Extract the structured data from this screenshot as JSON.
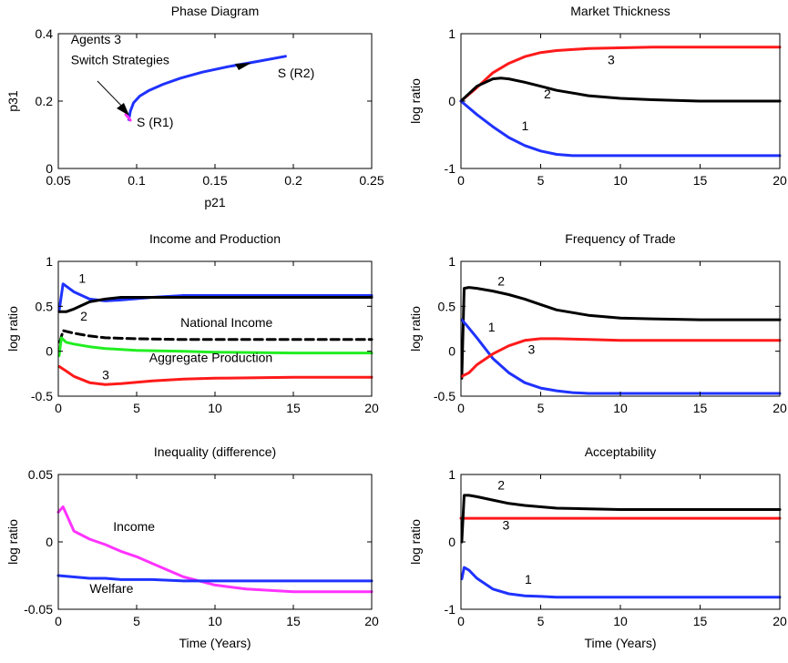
{
  "chart_data": [
    {
      "type": "line",
      "title": "Phase Diagram",
      "xlabel": "p21",
      "ylabel": "p31",
      "xlim": [
        0.05,
        0.25
      ],
      "ylim": [
        0,
        0.4
      ],
      "xticks": [
        0.05,
        0.1,
        0.15,
        0.2,
        0.25
      ],
      "xtick_labels": [
        "0.05",
        "0.1",
        "0.15",
        "0.2",
        "0.25"
      ],
      "yticks": [
        0,
        0.2,
        0.4
      ],
      "ytick_labels": [
        "0",
        "0.2",
        "0.4"
      ],
      "series": [
        {
          "color": "#1f32ff",
          "dashed": false,
          "x": [
            0.095,
            0.096,
            0.098,
            0.102,
            0.108,
            0.117,
            0.128,
            0.142,
            0.158,
            0.175,
            0.195
          ],
          "y": [
            0.145,
            0.17,
            0.195,
            0.215,
            0.232,
            0.25,
            0.268,
            0.286,
            0.302,
            0.316,
            0.333
          ]
        },
        {
          "color": "#ff33ff",
          "dashed": false,
          "x": [
            0.093,
            0.094,
            0.095,
            0.096
          ],
          "y": [
            0.16,
            0.155,
            0.15,
            0.143
          ]
        }
      ],
      "annotations": [
        {
          "text": "Agents 3",
          "x": 0.058,
          "y": 0.37
        },
        {
          "text": "Switch Strategies",
          "x": 0.058,
          "y": 0.31
        },
        {
          "text": "S (R2)",
          "x": 0.19,
          "y": 0.27
        },
        {
          "text": "S (R1)",
          "x": 0.1,
          "y": 0.125
        }
      ]
    },
    {
      "type": "line",
      "title": "Market Thickness",
      "xlabel": "",
      "ylabel": "log ratio",
      "xlim": [
        0,
        20
      ],
      "ylim": [
        -1,
        1
      ],
      "xticks": [
        0,
        5,
        10,
        15,
        20
      ],
      "xtick_labels": [
        "0",
        "5",
        "10",
        "15",
        "20"
      ],
      "yticks": [
        -1,
        0,
        1
      ],
      "ytick_labels": [
        "-1",
        "0",
        "1"
      ],
      "series": [
        {
          "color": "#ff1a1a",
          "dashed": false,
          "x": [
            0,
            1,
            2,
            3,
            4,
            5,
            6,
            8,
            10,
            12,
            15,
            20
          ],
          "y": [
            0,
            0.2,
            0.42,
            0.56,
            0.66,
            0.72,
            0.75,
            0.78,
            0.79,
            0.8,
            0.8,
            0.8
          ]
        },
        {
          "color": "#000000",
          "dashed": false,
          "x": [
            0,
            1,
            2,
            2.5,
            3,
            4,
            5,
            6,
            8,
            10,
            12,
            15,
            20
          ],
          "y": [
            0,
            0.22,
            0.33,
            0.34,
            0.33,
            0.28,
            0.22,
            0.16,
            0.08,
            0.04,
            0.02,
            0.0,
            0.0
          ]
        },
        {
          "color": "#1f32ff",
          "dashed": false,
          "x": [
            0,
            1,
            2,
            3,
            4,
            5,
            6,
            7,
            8,
            10,
            15,
            20
          ],
          "y": [
            0,
            -0.2,
            -0.38,
            -0.54,
            -0.66,
            -0.74,
            -0.79,
            -0.81,
            -0.81,
            -0.81,
            -0.81,
            -0.81
          ]
        }
      ],
      "annotations": [
        {
          "text": "3",
          "x": 9.2,
          "y": 0.55
        },
        {
          "text": "2",
          "x": 5.2,
          "y": 0.04
        },
        {
          "text": "1",
          "x": 3.8,
          "y": -0.43
        }
      ]
    },
    {
      "type": "line",
      "title": "Income and Production",
      "xlabel": "",
      "ylabel": "log ratio",
      "xlim": [
        0,
        20
      ],
      "ylim": [
        -0.5,
        1
      ],
      "xticks": [
        0,
        5,
        10,
        15,
        20
      ],
      "xtick_labels": [
        "0",
        "5",
        "10",
        "15",
        "20"
      ],
      "yticks": [
        -0.5,
        0,
        0.5,
        1
      ],
      "ytick_labels": [
        "-0.5",
        "0",
        "0.5",
        "1"
      ],
      "series": [
        {
          "color": "#1f32ff",
          "dashed": false,
          "x": [
            0.05,
            0.3,
            1,
            2,
            3,
            4,
            6,
            8,
            10,
            15,
            20
          ],
          "y": [
            0.45,
            0.75,
            0.66,
            0.58,
            0.56,
            0.57,
            0.6,
            0.62,
            0.62,
            0.62,
            0.62
          ]
        },
        {
          "color": "#000000",
          "dashed": false,
          "x": [
            0.05,
            0.5,
            1,
            2,
            3,
            4,
            6,
            8,
            10,
            15,
            20
          ],
          "y": [
            0.44,
            0.44,
            0.47,
            0.55,
            0.58,
            0.6,
            0.6,
            0.6,
            0.6,
            0.6,
            0.6
          ]
        },
        {
          "color": "#000000",
          "dashed": true,
          "x": [
            0.1,
            0.3,
            1,
            2,
            3,
            5,
            8,
            10,
            15,
            20
          ],
          "y": [
            0.1,
            0.23,
            0.2,
            0.17,
            0.15,
            0.14,
            0.13,
            0.13,
            0.13,
            0.13
          ]
        },
        {
          "color": "#22ee22",
          "dashed": false,
          "x": [
            0.05,
            0.2,
            0.5,
            1,
            2,
            3,
            5,
            8,
            10,
            15,
            20
          ],
          "y": [
            -0.05,
            0.15,
            0.1,
            0.08,
            0.05,
            0.03,
            0.01,
            0.0,
            -0.01,
            -0.02,
            -0.02
          ]
        },
        {
          "color": "#ff1a1a",
          "dashed": false,
          "x": [
            0.05,
            0.5,
            1,
            2,
            3,
            4,
            6,
            8,
            10,
            15,
            20
          ],
          "y": [
            -0.17,
            -0.22,
            -0.28,
            -0.35,
            -0.37,
            -0.36,
            -0.33,
            -0.31,
            -0.3,
            -0.29,
            -0.29
          ]
        }
      ],
      "annotations": [
        {
          "text": "1",
          "x": 1.3,
          "y": 0.76
        },
        {
          "text": "2",
          "x": 1.4,
          "y": 0.34
        },
        {
          "text": "National Income",
          "x": 7.8,
          "y": 0.27
        },
        {
          "text": "Aggregate Production",
          "x": 5.8,
          "y": -0.12
        },
        {
          "text": "3",
          "x": 2.8,
          "y": -0.31
        }
      ]
    },
    {
      "type": "line",
      "title": "Frequency of Trade",
      "xlabel": "",
      "ylabel": "log ratio",
      "xlim": [
        0,
        20
      ],
      "ylim": [
        -0.5,
        1
      ],
      "xticks": [
        0,
        5,
        10,
        15,
        20
      ],
      "xtick_labels": [
        "0",
        "5",
        "10",
        "15",
        "20"
      ],
      "yticks": [
        -0.5,
        0,
        0.5,
        1
      ],
      "ytick_labels": [
        "-0.5",
        "0",
        "0.5",
        "1"
      ],
      "series": [
        {
          "color": "#000000",
          "dashed": false,
          "x": [
            0.05,
            0.2,
            0.5,
            1,
            2,
            3,
            4,
            5,
            6,
            8,
            10,
            12,
            15,
            20
          ],
          "y": [
            -0.3,
            0.7,
            0.71,
            0.7,
            0.67,
            0.63,
            0.58,
            0.52,
            0.46,
            0.4,
            0.37,
            0.36,
            0.35,
            0.35
          ]
        },
        {
          "color": "#1f32ff",
          "dashed": false,
          "x": [
            0.05,
            0.3,
            1,
            2,
            3,
            4,
            5,
            6,
            7,
            8,
            10,
            15,
            20
          ],
          "y": [
            0.35,
            0.3,
            0.15,
            -0.08,
            -0.24,
            -0.35,
            -0.41,
            -0.44,
            -0.46,
            -0.47,
            -0.47,
            -0.47,
            -0.47
          ]
        },
        {
          "color": "#ff1a1a",
          "dashed": false,
          "x": [
            0.05,
            0.5,
            1,
            2,
            3,
            4,
            5,
            6,
            8,
            10,
            15,
            20
          ],
          "y": [
            -0.28,
            -0.24,
            -0.15,
            -0.03,
            0.06,
            0.12,
            0.14,
            0.14,
            0.13,
            0.12,
            0.12,
            0.12
          ]
        }
      ],
      "annotations": [
        {
          "text": "2",
          "x": 2.3,
          "y": 0.73
        },
        {
          "text": "1",
          "x": 1.7,
          "y": 0.22
        },
        {
          "text": "3",
          "x": 4.2,
          "y": -0.03
        }
      ]
    },
    {
      "type": "line",
      "title": "Inequality (difference)",
      "xlabel": "Time (Years)",
      "ylabel": "log ratio",
      "xlim": [
        0,
        20
      ],
      "ylim": [
        -0.05,
        0.05
      ],
      "xticks": [
        0,
        5,
        10,
        15,
        20
      ],
      "xtick_labels": [
        "0",
        "5",
        "10",
        "15",
        "20"
      ],
      "yticks": [
        -0.05,
        0,
        0.05
      ],
      "ytick_labels": [
        "-0.05",
        "0",
        "0.05"
      ],
      "series": [
        {
          "color": "#ff33ff",
          "dashed": false,
          "x": [
            0,
            0.3,
            1,
            2,
            3,
            4,
            5,
            6,
            7,
            8,
            9,
            10,
            12,
            15,
            20
          ],
          "y": [
            0.022,
            0.026,
            0.008,
            0.002,
            -0.002,
            -0.007,
            -0.011,
            -0.016,
            -0.021,
            -0.026,
            -0.029,
            -0.032,
            -0.035,
            -0.037,
            -0.037
          ]
        },
        {
          "color": "#1f32ff",
          "dashed": false,
          "x": [
            0,
            1,
            2,
            3,
            4,
            5,
            6,
            8,
            10,
            15,
            20
          ],
          "y": [
            -0.025,
            -0.026,
            -0.027,
            -0.027,
            -0.028,
            -0.028,
            -0.028,
            -0.029,
            -0.029,
            -0.029,
            -0.029
          ]
        }
      ],
      "annotations": [
        {
          "text": "Income",
          "x": 3.5,
          "y": 0.008
        },
        {
          "text": "Welfare",
          "x": 2.0,
          "y": -0.038
        }
      ]
    },
    {
      "type": "line",
      "title": "Acceptability",
      "xlabel": "Time (Years)",
      "ylabel": "log ratio",
      "xlim": [
        0,
        20
      ],
      "ylim": [
        -1,
        1
      ],
      "xticks": [
        0,
        5,
        10,
        15,
        20
      ],
      "xtick_labels": [
        "0",
        "5",
        "10",
        "15",
        "20"
      ],
      "yticks": [
        -1,
        0,
        1
      ],
      "ytick_labels": [
        "-1",
        "0",
        "1"
      ],
      "series": [
        {
          "color": "#ff1a1a",
          "dashed": false,
          "x": [
            0,
            20
          ],
          "y": [
            0.35,
            0.35
          ]
        },
        {
          "color": "#000000",
          "dashed": false,
          "x": [
            0.05,
            0.2,
            0.5,
            1,
            2,
            3,
            4,
            5,
            6,
            8,
            10,
            12,
            15,
            20
          ],
          "y": [
            0.0,
            0.69,
            0.69,
            0.67,
            0.62,
            0.57,
            0.54,
            0.52,
            0.5,
            0.49,
            0.48,
            0.48,
            0.48,
            0.48
          ]
        },
        {
          "color": "#1f32ff",
          "dashed": false,
          "x": [
            0.05,
            0.2,
            0.5,
            1,
            2,
            3,
            4,
            5,
            6,
            8,
            10,
            15,
            20
          ],
          "y": [
            -0.55,
            -0.38,
            -0.42,
            -0.54,
            -0.7,
            -0.77,
            -0.8,
            -0.81,
            -0.82,
            -0.82,
            -0.82,
            -0.82,
            -0.82
          ]
        }
      ],
      "annotations": [
        {
          "text": "2",
          "x": 2.3,
          "y": 0.78
        },
        {
          "text": "3",
          "x": 2.6,
          "y": 0.18
        },
        {
          "text": "1",
          "x": 4.0,
          "y": -0.62
        }
      ]
    }
  ]
}
